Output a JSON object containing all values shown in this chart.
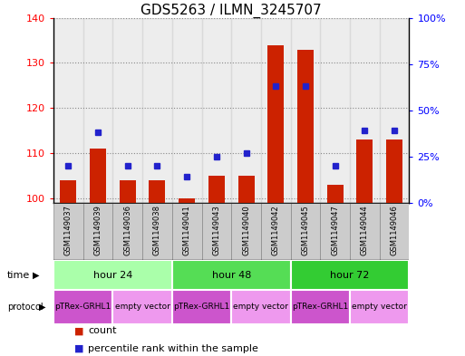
{
  "title": "GDS5263 / ILMN_3245707",
  "samples": [
    "GSM1149037",
    "GSM1149039",
    "GSM1149036",
    "GSM1149038",
    "GSM1149041",
    "GSM1149043",
    "GSM1149040",
    "GSM1149042",
    "GSM1149045",
    "GSM1149047",
    "GSM1149044",
    "GSM1149046"
  ],
  "counts": [
    104,
    111,
    104,
    104,
    100,
    105,
    105,
    134,
    133,
    103,
    113,
    113
  ],
  "percentile_ranks": [
    20,
    38,
    20,
    20,
    14,
    25,
    27,
    63,
    63,
    20,
    39,
    39
  ],
  "ylim_left": [
    99,
    140
  ],
  "ylim_right": [
    0,
    100
  ],
  "yticks_left": [
    100,
    110,
    120,
    130,
    140
  ],
  "yticks_right": [
    0,
    25,
    50,
    75,
    100
  ],
  "time_groups": [
    {
      "label": "hour 24",
      "start": 0,
      "end": 4,
      "color": "#AAFFAA"
    },
    {
      "label": "hour 48",
      "start": 4,
      "end": 8,
      "color": "#55DD55"
    },
    {
      "label": "hour 72",
      "start": 8,
      "end": 12,
      "color": "#33CC33"
    }
  ],
  "protocol_groups": [
    {
      "label": "pTRex-GRHL1",
      "start": 0,
      "end": 2,
      "color": "#CC55CC"
    },
    {
      "label": "empty vector",
      "start": 2,
      "end": 4,
      "color": "#EE99EE"
    },
    {
      "label": "pTRex-GRHL1",
      "start": 4,
      "end": 6,
      "color": "#CC55CC"
    },
    {
      "label": "empty vector",
      "start": 6,
      "end": 8,
      "color": "#EE99EE"
    },
    {
      "label": "pTRex-GRHL1",
      "start": 8,
      "end": 10,
      "color": "#CC55CC"
    },
    {
      "label": "empty vector",
      "start": 10,
      "end": 12,
      "color": "#EE99EE"
    }
  ],
  "bar_color": "#CC2200",
  "dot_color": "#2222CC",
  "bar_width": 0.55,
  "sample_bg_color": "#CCCCCC",
  "title_fontsize": 11,
  "tick_fontsize": 8,
  "sample_fontsize": 6,
  "row_fontsize": 8
}
